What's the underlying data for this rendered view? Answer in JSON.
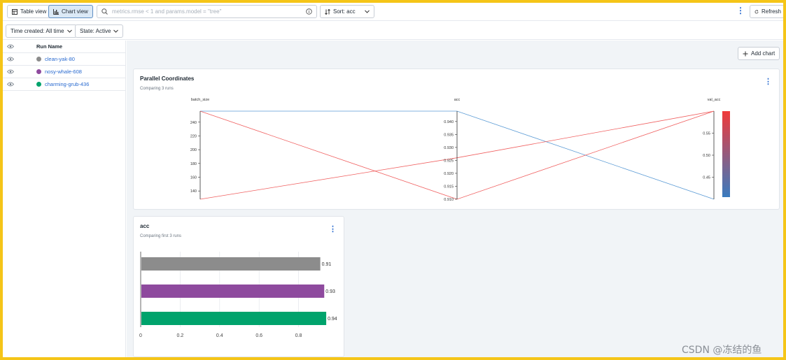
{
  "toolbar": {
    "table_view_label": "Table view",
    "chart_view_label": "Chart view",
    "search_placeholder": "metrics.rmse < 1 and params.model = \"tree\"",
    "sort_label": "Sort: acc",
    "refresh_label": "Refresh"
  },
  "filters": {
    "time_label": "Time created: All time",
    "state_label": "State: Active"
  },
  "runs": {
    "header": "Run Name",
    "items": [
      {
        "name": "clean-yak-80",
        "color": "#8c8c8c"
      },
      {
        "name": "nosy-whale-608",
        "color": "#8e4a9e"
      },
      {
        "name": "charming-grub-436",
        "color": "#00a36c"
      }
    ]
  },
  "main": {
    "add_chart_label": "Add chart"
  },
  "parallel_card": {
    "title": "Parallel Coordinates",
    "subtitle": "Comparing 3 runs"
  },
  "bar_card": {
    "title": "acc",
    "subtitle": "Comparing first 3 runs"
  },
  "chart_data": [
    {
      "type": "parallel",
      "axes": [
        {
          "name": "batch_size",
          "min": 128,
          "max": 256,
          "ticks": [
            140,
            160,
            180,
            200,
            220,
            240
          ]
        },
        {
          "name": "acc",
          "min": 0.91,
          "max": 0.944,
          "ticks": [
            0.91,
            0.915,
            0.92,
            0.925,
            0.93,
            0.935,
            0.94
          ]
        },
        {
          "name": "val_acc",
          "min": 0.4,
          "max": 0.6,
          "ticks": [
            0.45,
            0.5,
            0.55
          ]
        }
      ],
      "runs": [
        {
          "values": [
            256,
            0.944,
            0.4
          ],
          "color": "#5b9bd5"
        },
        {
          "values": [
            256,
            0.91,
            0.6
          ],
          "color": "#f06060"
        },
        {
          "values": [
            128,
            0.926,
            0.6
          ],
          "color": "#f06060"
        }
      ],
      "colorbar": {
        "top": "#f03a3a",
        "bottom": "#3a7bbf"
      }
    },
    {
      "type": "bar",
      "orientation": "horizontal",
      "categories": [
        "clean-yak-80",
        "nosy-whale-608",
        "charming-grub-436"
      ],
      "values": [
        0.91,
        0.93,
        0.94
      ],
      "labels": [
        "0.91",
        "0.93",
        "0.94"
      ],
      "colors": [
        "#8c8c8c",
        "#8e4a9e",
        "#00a36c"
      ],
      "xlim": [
        0,
        1
      ],
      "xticks": [
        "0",
        "0.2",
        "0.4",
        "0.6",
        "0.8"
      ],
      "grid": true
    }
  ]
}
